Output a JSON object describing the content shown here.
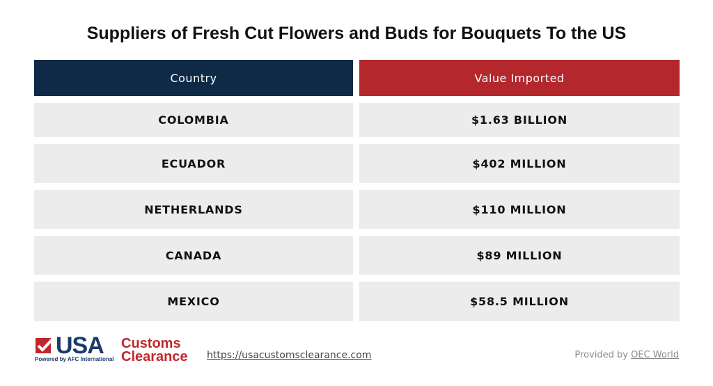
{
  "header": {
    "title": "Suppliers of Fresh Cut Flowers and Buds for Bouquets To the US"
  },
  "table": {
    "columns": [
      "Country",
      "Value Imported"
    ],
    "rows": [
      [
        "COLOMBIA",
        "$1.63 BILLION"
      ],
      [
        "ECUADOR",
        "$402 MILLION"
      ],
      [
        "NETHERLANDS",
        "$110 MILLION"
      ],
      [
        "CANADA",
        "$89 MILLION"
      ],
      [
        "MEXICO",
        "$58.5 MILLION"
      ]
    ]
  },
  "footer": {
    "logo": {
      "usa": "USA",
      "line1": "Customs",
      "line2": "Clearance",
      "tagline": "Powered by AFC International"
    },
    "url": "https://usacustomsclearance.com",
    "provided_by": "Provided by",
    "source": "OEC World"
  }
}
